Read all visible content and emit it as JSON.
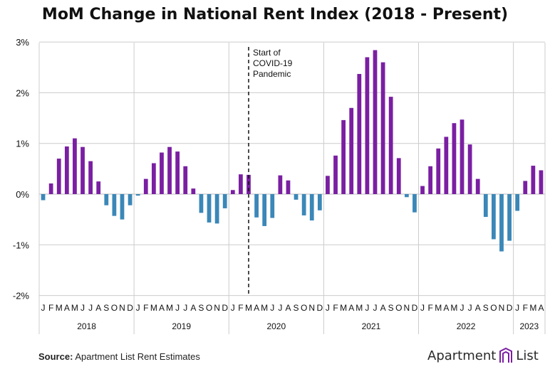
{
  "title": "MoM Change in National Rent Index (2018 - Present)",
  "source_label": "Source:",
  "source_text": "Apartment List Rent Estimates",
  "logo": {
    "left": "Apartment",
    "right": "List",
    "icon": "building-logo-icon"
  },
  "colors": {
    "positive": "#7a1fa2",
    "negative": "#3b87b8",
    "grid": "#cccccc",
    "text": "#111111"
  },
  "chart_data": {
    "type": "bar",
    "title": "MoM Change in National Rent Index (2018 - Present)",
    "ylim": [
      -2,
      3
    ],
    "yticks": [
      "-2%",
      "-1%",
      "0%",
      "1%",
      "2%",
      "3%"
    ],
    "annotation": [
      "Start of",
      "COVID-19",
      "Pandemic"
    ],
    "years": [
      {
        "label": "2018",
        "months": [
          "J",
          "F",
          "M",
          "A",
          "M",
          "J",
          "J",
          "A",
          "S",
          "O",
          "N",
          "D"
        ],
        "values": [
          -0.12,
          0.21,
          0.7,
          0.94,
          1.1,
          0.93,
          0.65,
          0.25,
          -0.22,
          -0.43,
          -0.5,
          -0.22
        ]
      },
      {
        "label": "2019",
        "months": [
          "J",
          "F",
          "M",
          "A",
          "M",
          "J",
          "J",
          "A",
          "S",
          "O",
          "N",
          "D"
        ],
        "values": [
          -0.03,
          0.3,
          0.61,
          0.82,
          0.93,
          0.84,
          0.55,
          0.11,
          -0.37,
          -0.56,
          -0.58,
          -0.28
        ]
      },
      {
        "label": "2020",
        "months": [
          "J",
          "F",
          "M",
          "A",
          "M",
          "J",
          "J",
          "A",
          "S",
          "O",
          "N",
          "D"
        ],
        "values": [
          0.08,
          0.39,
          0.38,
          -0.46,
          -0.63,
          -0.47,
          0.37,
          0.27,
          -0.11,
          -0.42,
          -0.52,
          -0.32
        ]
      },
      {
        "label": "2021",
        "months": [
          "J",
          "F",
          "M",
          "A",
          "M",
          "J",
          "J",
          "A",
          "S",
          "O",
          "N",
          "D"
        ],
        "values": [
          0.36,
          0.76,
          1.46,
          1.7,
          2.37,
          2.7,
          2.84,
          2.6,
          1.92,
          0.71,
          -0.06,
          -0.36
        ]
      },
      {
        "label": "2022",
        "months": [
          "J",
          "F",
          "M",
          "A",
          "M",
          "J",
          "J",
          "A",
          "S",
          "O",
          "N",
          "D"
        ],
        "values": [
          0.16,
          0.55,
          0.9,
          1.13,
          1.4,
          1.47,
          0.98,
          0.3,
          -0.45,
          -0.89,
          -1.13,
          -0.92
        ]
      },
      {
        "label": "2023",
        "months": [
          "J",
          "F",
          "M",
          "A"
        ],
        "values": [
          -0.33,
          0.26,
          0.56,
          0.47
        ]
      }
    ],
    "grid": true,
    "legend": "none"
  }
}
